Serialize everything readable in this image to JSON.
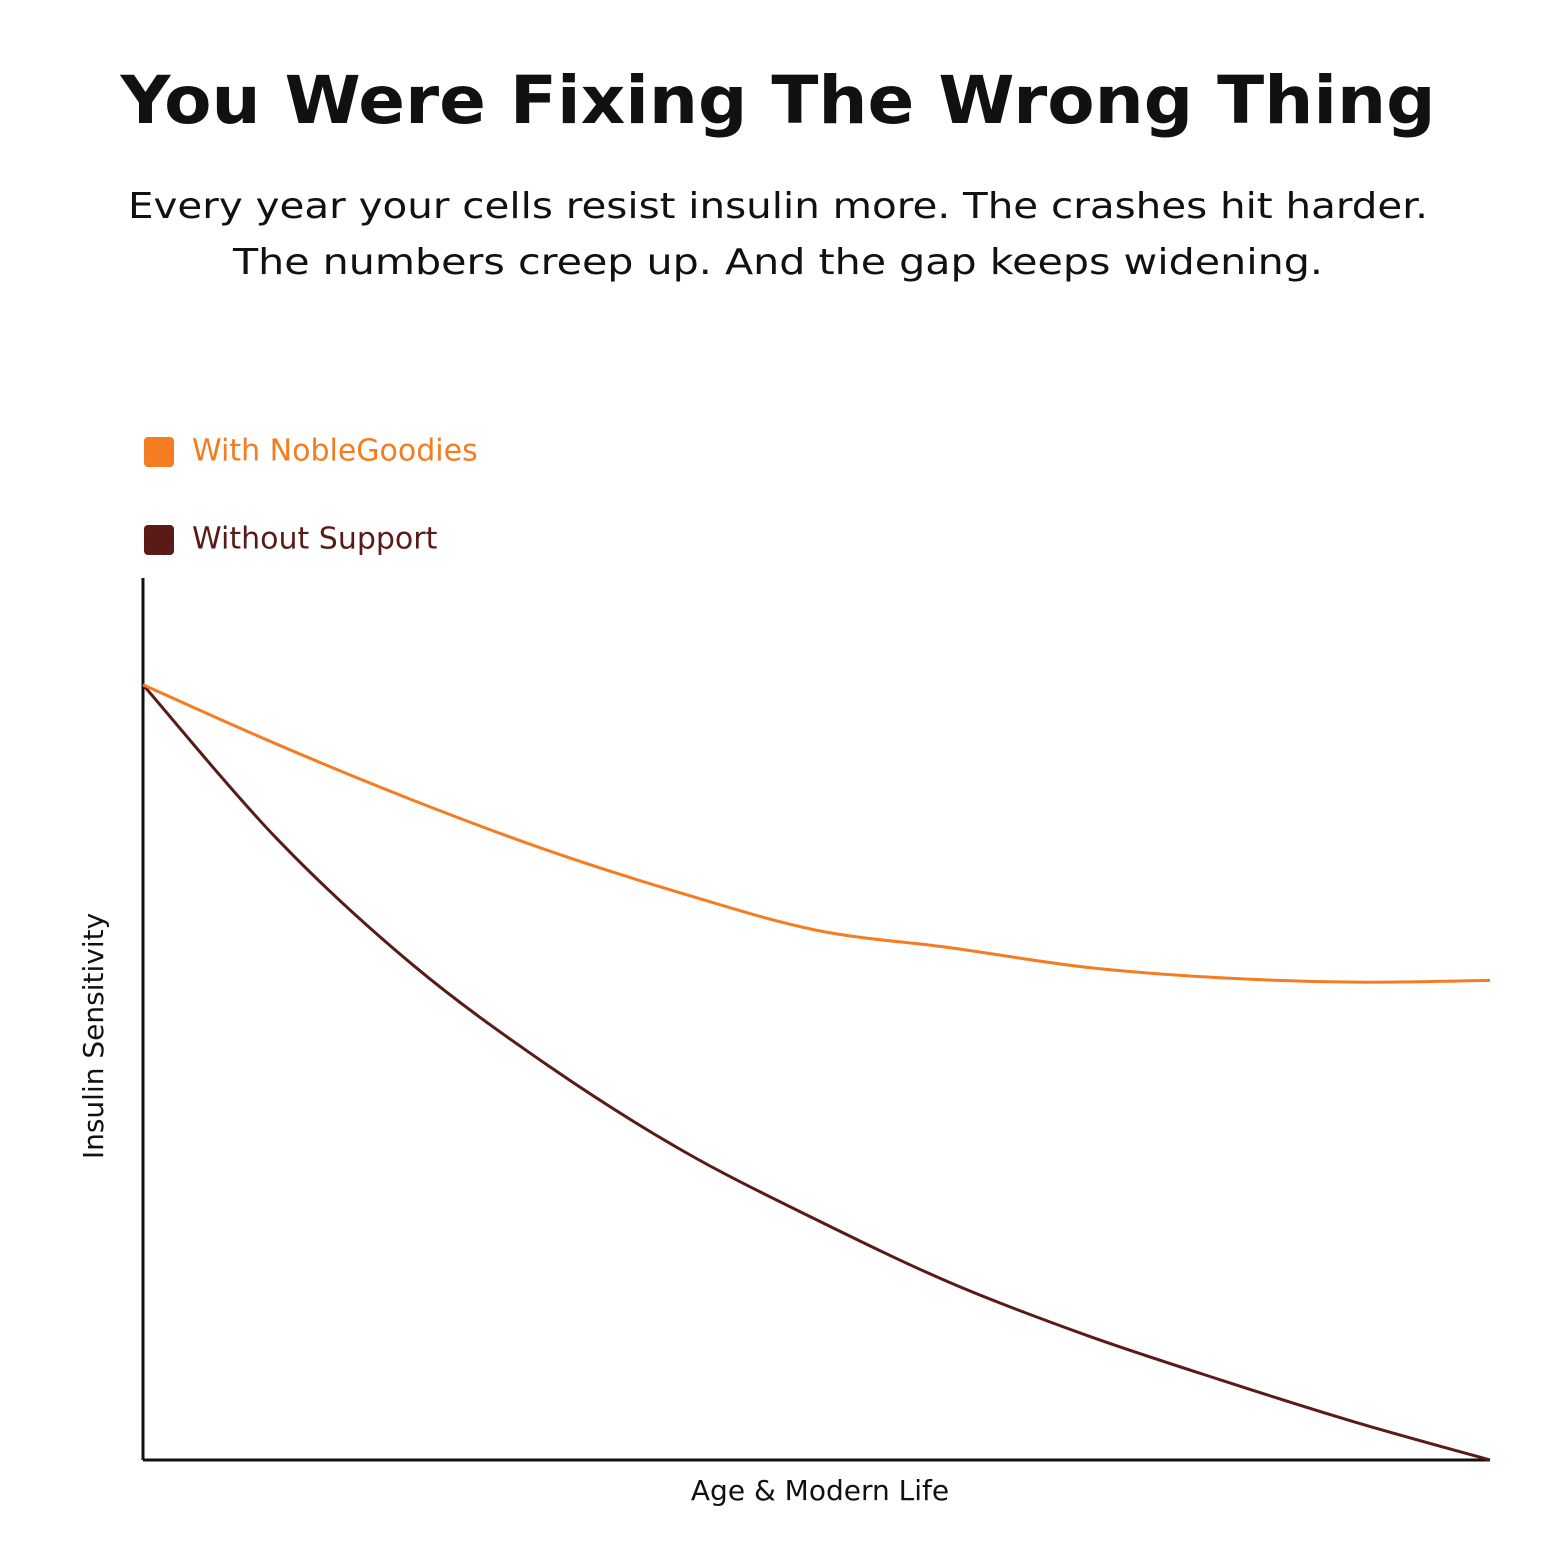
{
  "chart_data": {
    "type": "line",
    "title": "You Were Fixing The Wrong Thing",
    "subtitle": [
      "Every year your cells resist insulin more. The crashes hit harder.",
      "The numbers creep up. And the gap keeps widening."
    ],
    "x_label": "Age & Modern Life",
    "y_label": "Insulin Sensitivity",
    "x": [
      0,
      1,
      2,
      3,
      4,
      5,
      6,
      7,
      8,
      9,
      10
    ],
    "xlim": [
      0,
      10
    ],
    "ylim": [
      0,
      100
    ],
    "series": [
      {
        "name": "With NobleGoodies",
        "color": "#f57c20",
        "values": [
          88.1,
          81.3,
          75,
          69.3,
          64.4,
          60.2,
          58.2,
          56,
          54.8,
          54.3,
          54.5
        ]
      },
      {
        "name": "Without Support",
        "color": "#5a1a17",
        "values": [
          88.1,
          70.5,
          56.3,
          44.9,
          35.2,
          27.3,
          20.1,
          14.2,
          9.1,
          4.3,
          0
        ]
      }
    ]
  }
}
